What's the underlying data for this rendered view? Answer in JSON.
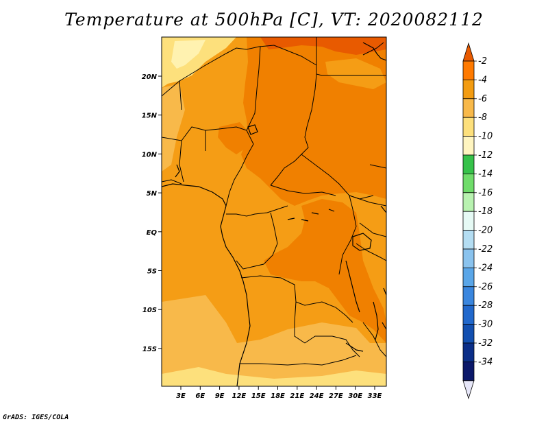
{
  "title": "Temperature at 500hPa [C], VT: 2020082112",
  "credit": "GrADS: IGES/COLA",
  "map": {
    "lon_ticks": [
      "3E",
      "6E",
      "9E",
      "12E",
      "15E",
      "18E",
      "21E",
      "24E",
      "27E",
      "30E",
      "33E"
    ],
    "lat_ticks": [
      "20N",
      "15N",
      "10N",
      "5N",
      "EQ",
      "5S",
      "10S",
      "15S"
    ]
  },
  "colorbar": {
    "labels": [
      "-2",
      "-4",
      "-6",
      "-8",
      "-10",
      "-12",
      "-14",
      "-16",
      "-18",
      "-20",
      "-22",
      "-24",
      "-26",
      "-28",
      "-30",
      "-32",
      "-34"
    ],
    "colors": [
      "#e85a00",
      "#ff7a00",
      "#f39c12",
      "#f8b94a",
      "#fde07c",
      "#fff5c0",
      "#36c24a",
      "#6fdc6a",
      "#b8f2b0",
      "#e6faf5",
      "#b4ddf2",
      "#8ac3ee",
      "#5aa6e8",
      "#3a86de",
      "#2168cc",
      "#124fb0",
      "#0b2e88",
      "#0b186a",
      "#e6e6f8"
    ]
  },
  "field_colors": {
    "c2": "#e85a00",
    "c4": "#f08000",
    "c6": "#f59d15",
    "c8": "#f8b94a",
    "c10": "#fde07c",
    "c12": "#fff2b0"
  }
}
